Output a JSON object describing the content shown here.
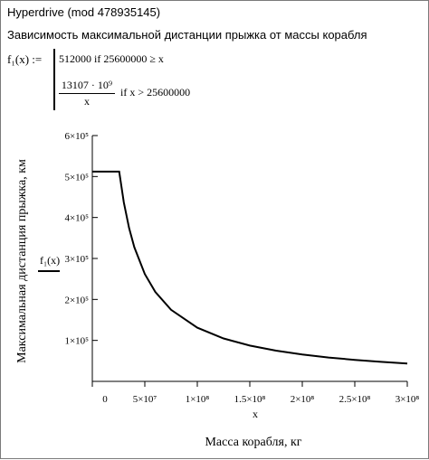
{
  "window": {
    "title": "Hyperdrive (mod 478935145)",
    "subtitle": "Зависимость максимальной дистанции прыжка от массы корабля"
  },
  "formula": {
    "lhs": "f₁(x) :=",
    "case1": "512000  if  25600000 ≥ x",
    "case2_numerator": "13107 · 10⁹",
    "case2_denominator": "x",
    "case2_condition": "if  x > 25600000"
  },
  "chart_data": {
    "type": "line",
    "function": "f1(x) = 512000 if x <= 25600000 else 13107e9 / x",
    "xlabel": "x",
    "x_title": "Масса корабля, кг",
    "ylabel": "Максимальная дистанция прыжка, км",
    "series_label": "f₁(x)",
    "xlim": [
      0,
      300000000
    ],
    "ylim": [
      0,
      600000
    ],
    "x_ticks": [
      0,
      50000000,
      100000000,
      150000000,
      200000000,
      250000000,
      300000000
    ],
    "x_tick_labels": [
      "0",
      "5×10⁷",
      "1×10⁸",
      "1.5×10⁸",
      "2×10⁸",
      "2.5×10⁸",
      "3×10⁸"
    ],
    "y_ticks": [
      100000,
      200000,
      300000,
      400000,
      500000,
      600000
    ],
    "y_tick_labels": [
      "1×10⁵",
      "2×10⁵",
      "3×10⁵",
      "4×10⁵",
      "5×10⁵",
      "6×10⁵"
    ],
    "points": [
      [
        0,
        512000
      ],
      [
        25600000,
        512000
      ],
      [
        30000000,
        436900
      ],
      [
        35000000,
        374486
      ],
      [
        40000000,
        327675
      ],
      [
        50000000,
        262140
      ],
      [
        60000000,
        218450
      ],
      [
        75000000,
        174760
      ],
      [
        100000000,
        131070
      ],
      [
        125000000,
        104856
      ],
      [
        150000000,
        87380
      ],
      [
        175000000,
        74897
      ],
      [
        200000000,
        65535
      ],
      [
        225000000,
        58253
      ],
      [
        250000000,
        52428
      ],
      [
        275000000,
        47662
      ],
      [
        300000000,
        43690
      ]
    ],
    "grid": false,
    "colors": {
      "line": "#000000",
      "axis": "#000000"
    }
  }
}
